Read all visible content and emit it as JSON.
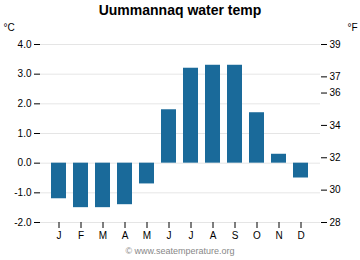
{
  "chart_data": {
    "type": "bar",
    "title": "Uummannaq water temp",
    "categories": [
      "J",
      "F",
      "M",
      "A",
      "M",
      "J",
      "J",
      "A",
      "S",
      "O",
      "N",
      "D"
    ],
    "values": [
      -1.2,
      -1.5,
      -1.5,
      -1.4,
      -0.7,
      1.8,
      3.2,
      3.3,
      3.3,
      1.7,
      0.3,
      -0.5
    ],
    "color": "#1A6A9A",
    "ylim": [
      -2.0,
      4.0
    ],
    "yticks": [
      {
        "value": -2.0,
        "label": "-2.0"
      },
      {
        "value": -1.0,
        "label": "-1.0"
      },
      {
        "value": 0.0,
        "label": "0.0"
      },
      {
        "value": 1.0,
        "label": "1.0"
      },
      {
        "value": 2.0,
        "label": "2.0"
      },
      {
        "value": 3.0,
        "label": "3.0"
      },
      {
        "value": 4.0,
        "label": "4.0"
      }
    ],
    "ylabel": "°C",
    "y2lim": [
      28,
      39
    ],
    "y2ticks": [
      28,
      30,
      32,
      34,
      36,
      37,
      39
    ],
    "y2label": "°F",
    "grid": true,
    "annotations": [
      "© www.seatemperature.org"
    ]
  }
}
